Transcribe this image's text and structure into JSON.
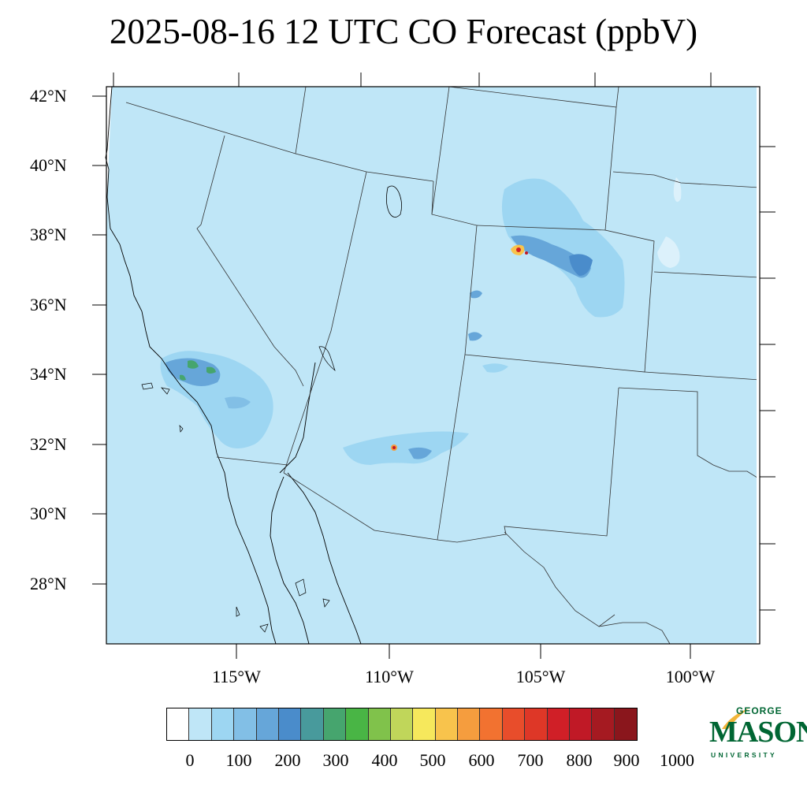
{
  "title": "2025-08-16 12 UTC CO Forecast (ppbV)",
  "latitude_labels": [
    "42°N",
    "40°N",
    "38°N",
    "36°N",
    "34°N",
    "32°N",
    "30°N",
    "28°N"
  ],
  "longitude_labels": [
    "115°W",
    "110°W",
    "105°W",
    "100°W"
  ],
  "colorbar": {
    "labels": [
      "0",
      "100",
      "200",
      "300",
      "400",
      "500",
      "600",
      "700",
      "800",
      "900",
      "1000"
    ],
    "colors": [
      "#ffffff",
      "#dcf1fb",
      "#bfe6f7",
      "#9dd6f2",
      "#82bfe6",
      "#66a6d9",
      "#4a8ccb",
      "#489a9c",
      "#46a56e",
      "#49b545",
      "#80c24b",
      "#c0d65a",
      "#f6e85c",
      "#f8c34c",
      "#f59d3e",
      "#f27230",
      "#e84d2b",
      "#de3727",
      "#d01f27",
      "#c01926",
      "#a51a21",
      "#8a161c"
    ]
  },
  "logo": {
    "line1": "GEORGE",
    "line2": "MASON",
    "line3": "UNIVERSITY",
    "color": "#006633",
    "accent_color": "#f2b53a"
  },
  "map": {
    "background_color": "#bfe6f7",
    "region": "Southwestern United States and northwestern Mexico"
  }
}
